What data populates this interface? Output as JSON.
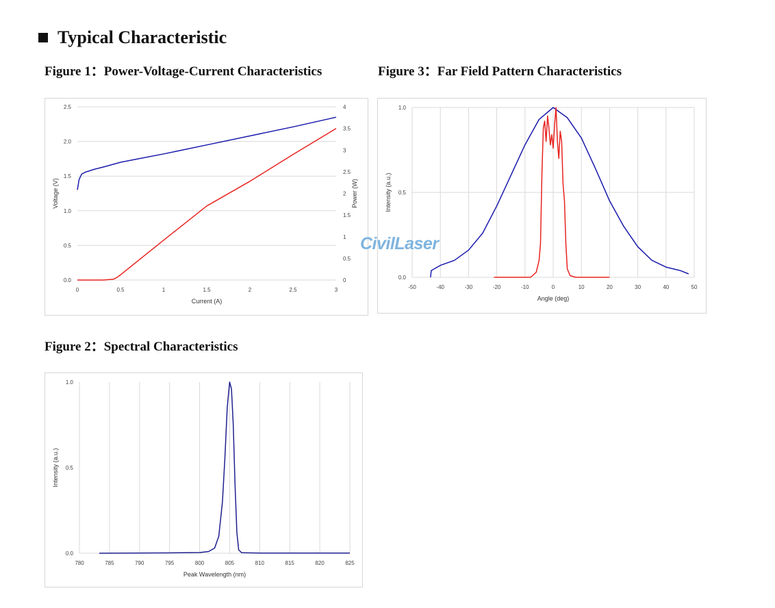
{
  "page": {
    "section_title": "Typical Characteristic",
    "fig1_title": "Figure 1：Power-Voltage-Current Characteristics",
    "fig2_title": "Figure 2：Spectral Characteristics",
    "fig3_title": "Figure 3：Far Field Pattern Characteristics",
    "watermark": "CivilLaser"
  },
  "colors": {
    "blue": "#1a1aad",
    "red": "#e8231f",
    "grid": "#d9d9d9",
    "dark_blue": "#1f1f8f"
  },
  "chart_data": [
    {
      "id": "piv",
      "type": "line",
      "title": "",
      "xlabel": "Current (A)",
      "ylabel": "Voltage (V)",
      "y2label": "Power (W)",
      "xlim": [
        0,
        3
      ],
      "ylim": [
        0,
        2.5
      ],
      "y2lim": [
        0,
        4
      ],
      "xticks": [
        0,
        0.5,
        1,
        1.5,
        2,
        2.5,
        3
      ],
      "xtick_labels": [
        "0",
        "0.5",
        "1",
        "1.5",
        "2",
        "2.5",
        "3"
      ],
      "yticks": [
        0,
        0.5,
        1,
        1.5,
        2,
        2.5
      ],
      "ytick_labels": [
        "0.0",
        "0.5",
        "1.0",
        "1.5",
        "2.0",
        "2.5"
      ],
      "y2ticks": [
        0,
        0.5,
        1,
        1.5,
        2,
        2.5,
        3,
        3.5,
        4
      ],
      "y2tick_labels": [
        "0",
        "0.5",
        "1",
        "1.5",
        "2",
        "2.5",
        "3",
        "3.5",
        "4"
      ],
      "grid": "horizontal",
      "series": [
        {
          "axis": "left",
          "color": "#1a1aad",
          "x": [
            0,
            0.02,
            0.05,
            0.1,
            0.2,
            0.3,
            0.5,
            0.75,
            1.0,
            1.5,
            2.0,
            2.5,
            3.0
          ],
          "y": [
            1.3,
            1.45,
            1.53,
            1.56,
            1.6,
            1.63,
            1.7,
            1.76,
            1.82,
            1.95,
            2.08,
            2.21,
            2.35
          ]
        },
        {
          "axis": "right",
          "color": "#e8231f",
          "x": [
            0,
            0.3,
            0.42,
            0.46,
            0.5,
            0.75,
            1.0,
            1.5,
            2.0,
            2.5,
            3.0
          ],
          "y": [
            0,
            0.0,
            0.02,
            0.06,
            0.12,
            0.52,
            0.92,
            1.71,
            2.28,
            2.9,
            3.5
          ]
        }
      ]
    },
    {
      "id": "spectrum",
      "type": "line",
      "title": "",
      "xlabel": "Peak Wavelength (nm)",
      "ylabel": "Intensity (a.u.)",
      "xlim": [
        780,
        825
      ],
      "ylim": [
        0,
        1
      ],
      "xticks": [
        780,
        785,
        790,
        795,
        800,
        805,
        810,
        815,
        820,
        825
      ],
      "xtick_labels": [
        "780",
        "785",
        "790",
        "795",
        "800",
        "805",
        "810",
        "815",
        "820",
        "825"
      ],
      "yticks": [
        0,
        0.5,
        1
      ],
      "ytick_labels": [
        "0.0",
        "0.5",
        "1.0"
      ],
      "grid": "vertical",
      "series": [
        {
          "color": "#1f1f8f",
          "x": [
            783.3,
            795,
            800,
            801.5,
            802.5,
            803.2,
            803.8,
            804.2,
            804.6,
            805.0,
            805.3,
            805.6,
            805.9,
            806.2,
            806.5,
            807,
            810,
            825
          ],
          "y": [
            0,
            0.002,
            0.004,
            0.01,
            0.03,
            0.1,
            0.3,
            0.55,
            0.85,
            1.0,
            0.96,
            0.75,
            0.4,
            0.12,
            0.02,
            0.003,
            0.001,
            0.001
          ]
        }
      ]
    },
    {
      "id": "farfield",
      "type": "line",
      "title": "",
      "xlabel": "Angle (deg)",
      "ylabel": "Intensity (a.u.)",
      "xlim": [
        -50,
        50
      ],
      "ylim": [
        0,
        1
      ],
      "xticks": [
        -50,
        -40,
        -30,
        -20,
        -10,
        0,
        10,
        20,
        30,
        40,
        50
      ],
      "xtick_labels": [
        "-50",
        "-40",
        "-30",
        "-20",
        "-10",
        "0",
        "10",
        "20",
        "30",
        "40",
        "50"
      ],
      "yticks": [
        0,
        0.5,
        1
      ],
      "ytick_labels": [
        "0.0",
        "0.5",
        "1.0"
      ],
      "grid": "both",
      "series": [
        {
          "color": "#1a1aad",
          "x": [
            -43.5,
            -43.2,
            -40,
            -35,
            -30,
            -25,
            -20,
            -15,
            -10,
            -5,
            0,
            5,
            10,
            15,
            20,
            25,
            30,
            35,
            40,
            45,
            48
          ],
          "y": [
            0.0,
            0.04,
            0.07,
            0.1,
            0.16,
            0.26,
            0.42,
            0.6,
            0.78,
            0.93,
            1.0,
            0.94,
            0.82,
            0.64,
            0.45,
            0.3,
            0.18,
            0.1,
            0.06,
            0.04,
            0.02
          ]
        },
        {
          "color": "#e8231f",
          "x": [
            -21,
            -8,
            -6,
            -5,
            -4.5,
            -4,
            -3.5,
            -3,
            -2.5,
            -2,
            -1.5,
            -1,
            -0.5,
            0,
            0.5,
            1,
            1.5,
            2,
            2.5,
            3,
            3.5,
            4,
            4.5,
            5,
            6,
            8,
            20
          ],
          "y": [
            0,
            0,
            0.03,
            0.1,
            0.2,
            0.6,
            0.88,
            0.92,
            0.8,
            0.95,
            0.88,
            0.78,
            0.84,
            0.76,
            0.9,
            1.0,
            0.8,
            0.7,
            0.86,
            0.8,
            0.55,
            0.45,
            0.2,
            0.05,
            0.01,
            0,
            0
          ]
        }
      ]
    }
  ]
}
